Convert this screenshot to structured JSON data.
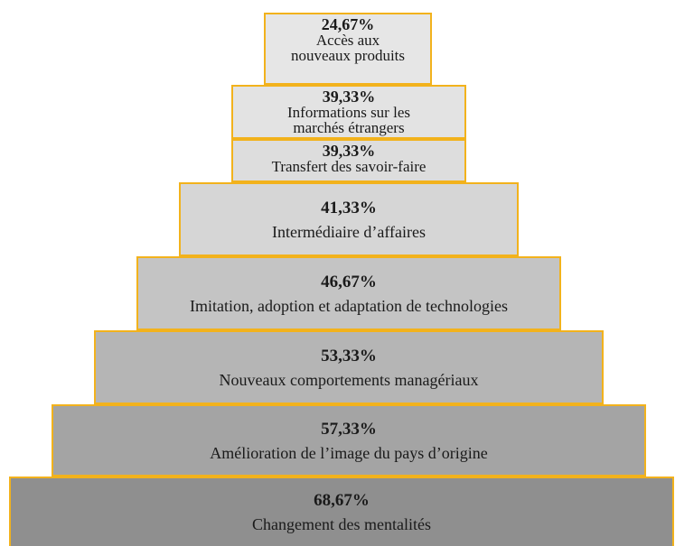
{
  "levels": [
    {
      "percent": "24,67%",
      "label": "Accès aux\nnouveaux produits",
      "fill": "#e6e6e6"
    },
    {
      "percent": "39,33%",
      "label": "Informations sur les\nmarchés étrangers",
      "fill": "#e3e3e3"
    },
    {
      "percent": "39,33%",
      "label": "Transfert des savoir-faire",
      "fill": "#dddddd"
    },
    {
      "percent": "41,33%",
      "label": "Intermédiaire d’affaires",
      "fill": "#d6d6d6"
    },
    {
      "percent": "46,67%",
      "label": "Imitation, adoption et adaptation de technologies",
      "fill": "#c4c4c4"
    },
    {
      "percent": "53,33%",
      "label": "Nouveaux comportements managériaux",
      "fill": "#b5b5b5"
    },
    {
      "percent": "57,33%",
      "label": "Amélioration de l’image du pays d’origine",
      "fill": "#a4a4a4"
    },
    {
      "percent": "68,67%",
      "label": "Changement des mentalités",
      "fill": "#8f8f8f"
    }
  ]
}
